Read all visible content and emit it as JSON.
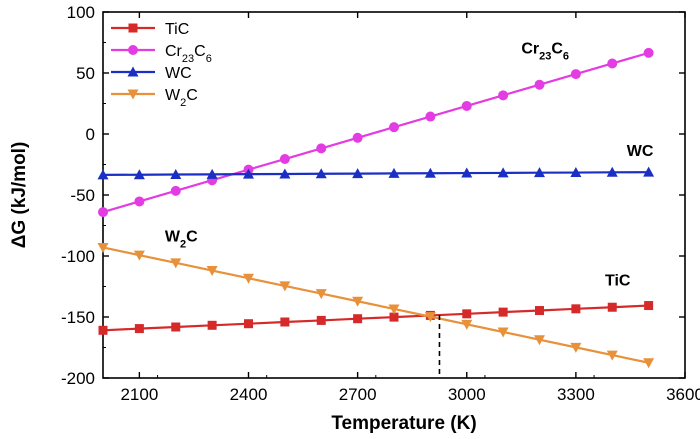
{
  "chart_data": {
    "type": "line",
    "xlabel": "Temperature (K)",
    "ylabel": "ΔG (kJ/mol)",
    "xlim": [
      2000,
      3600
    ],
    "ylim": [
      -200,
      100
    ],
    "xticks": [
      2100,
      2400,
      2700,
      3000,
      3300,
      3600
    ],
    "yticks": [
      -200,
      -150,
      -100,
      -50,
      0,
      50,
      100
    ],
    "grid": false,
    "legend_position": "top-left",
    "x": [
      2000,
      2100,
      2200,
      2300,
      2400,
      2500,
      2600,
      2700,
      2800,
      2900,
      3000,
      3100,
      3200,
      3300,
      3400,
      3500
    ],
    "series": [
      {
        "name": "TiC",
        "legend": {
          "base": "TiC",
          "sub": ""
        },
        "color": "#d62a2a",
        "marker": "square",
        "values": [
          -160.9,
          -159.5,
          -158.2,
          -156.8,
          -155.5,
          -154.1,
          -152.8,
          -151.4,
          -150.1,
          -148.7,
          -147.4,
          -146.0,
          -144.7,
          -143.3,
          -142.0,
          -140.6
        ]
      },
      {
        "name": "Cr23C6",
        "legend": {
          "base": "Cr",
          "sub": "23",
          "base2": "C",
          "sub2": "6"
        },
        "color": "#e23ce2",
        "marker": "circle",
        "values": [
          -64,
          -55.3,
          -46.6,
          -37.9,
          -29.2,
          -20.5,
          -11.8,
          -3.1,
          5.6,
          14.3,
          23,
          31.7,
          40.4,
          49.1,
          57.8,
          66.5
        ]
      },
      {
        "name": "WC",
        "legend": {
          "base": "WC",
          "sub": ""
        },
        "color": "#1c2fc4",
        "marker": "triangle-up",
        "values": [
          -33.5,
          -33.4,
          -33.2,
          -33.1,
          -32.9,
          -32.8,
          -32.6,
          -32.5,
          -32.3,
          -32.2,
          -32.0,
          -31.9,
          -31.7,
          -31.6,
          -31.4,
          -31.3
        ]
      },
      {
        "name": "W2C",
        "legend": {
          "base": "W",
          "sub": "2",
          "base2": "C",
          "sub2": ""
        },
        "color": "#e8913a",
        "marker": "triangle-down",
        "values": [
          -93,
          -99.3,
          -105.6,
          -111.9,
          -118.2,
          -124.5,
          -130.8,
          -137.1,
          -143.4,
          -149.7,
          -156.0,
          -162.3,
          -168.6,
          -174.9,
          -181.2,
          -187.5
        ]
      }
    ],
    "annotations": [
      {
        "series": "Cr23C6",
        "base": "Cr",
        "sub": "23",
        "base2": "C",
        "sub2": "6",
        "x": 3150,
        "y": 66
      },
      {
        "series": "WC",
        "base": "WC",
        "sub": "",
        "x": 3440,
        "y": -18
      },
      {
        "series": "W2C",
        "base": "W",
        "sub": "2",
        "base2": "C",
        "sub2": "",
        "x": 2170,
        "y": -88
      },
      {
        "series": "TiC",
        "base": "TiC",
        "sub": "",
        "x": 3380,
        "y": -124
      }
    ],
    "crossover": {
      "x": 2925,
      "y": -148.4
    }
  }
}
